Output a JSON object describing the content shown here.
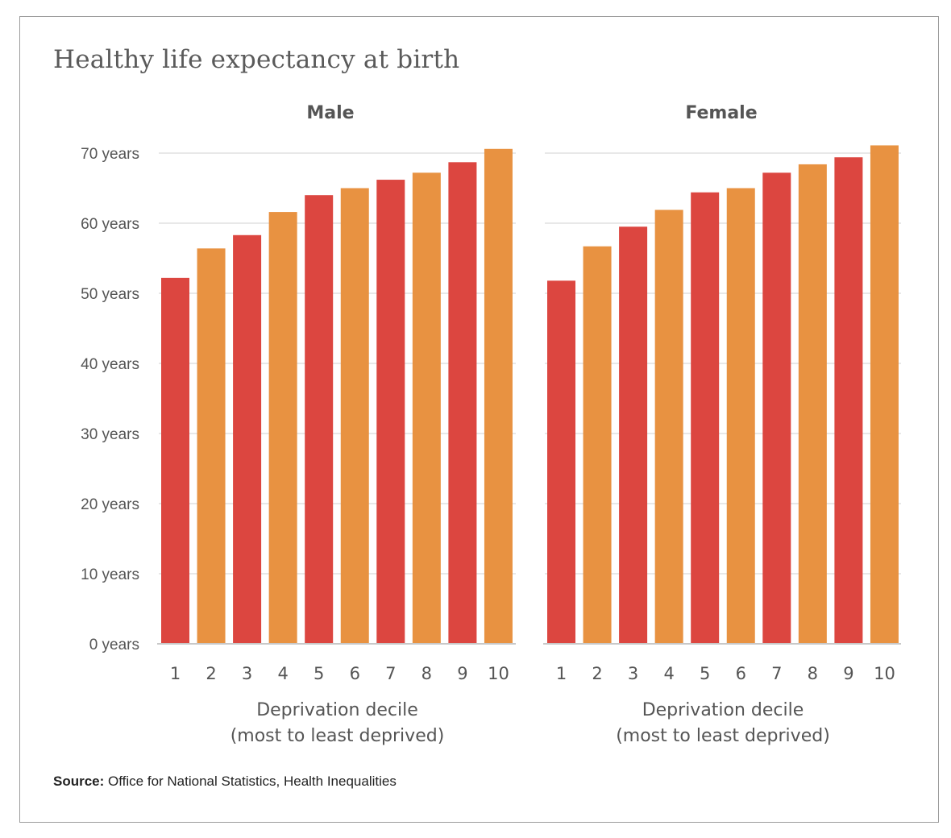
{
  "title": "Healthy life expectancy at birth",
  "source": {
    "label": "Source:",
    "text": "Office for National Statistics, Health Inequalities"
  },
  "colors": {
    "odd_bar": "#dc4640",
    "even_bar": "#e89241",
    "gridline": "#d9d9d9",
    "axis_line": "#c8c8c8",
    "text": "#555555"
  },
  "chart_data": [
    {
      "type": "bar",
      "title": "Male",
      "categories": [
        "1",
        "2",
        "3",
        "4",
        "5",
        "6",
        "7",
        "8",
        "9",
        "10"
      ],
      "values": [
        52.2,
        56.4,
        58.3,
        61.6,
        64.0,
        65.0,
        66.2,
        67.2,
        68.7,
        70.6
      ],
      "ylim": [
        0,
        70
      ],
      "yticks": [
        0,
        10,
        20,
        30,
        40,
        50,
        60,
        70
      ],
      "ytick_labels": [
        "0 years",
        "10 years",
        "20 years",
        "30 years",
        "40 years",
        "50 years",
        "60 years",
        "70 years"
      ],
      "xlabel": [
        "Deprivation decile",
        "(most to least deprived)"
      ],
      "ylabel": "",
      "grid": true
    },
    {
      "type": "bar",
      "title": "Female",
      "categories": [
        "1",
        "2",
        "3",
        "4",
        "5",
        "6",
        "7",
        "8",
        "9",
        "10"
      ],
      "values": [
        51.8,
        56.7,
        59.5,
        61.9,
        64.4,
        65.0,
        67.2,
        68.4,
        69.4,
        71.1
      ],
      "ylim": [
        0,
        70
      ],
      "xlabel": [
        "Deprivation decile",
        "(most to least deprived)"
      ],
      "ylabel": "",
      "grid": true
    }
  ]
}
